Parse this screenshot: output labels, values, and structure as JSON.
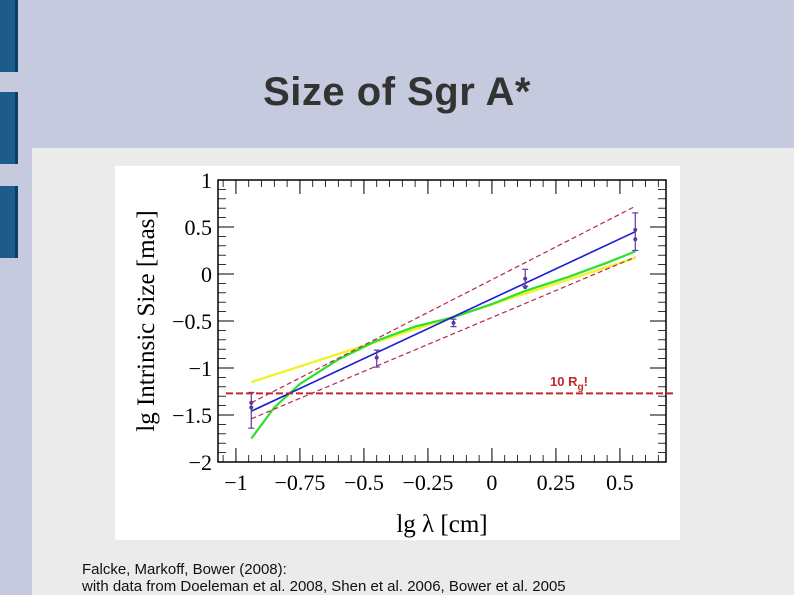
{
  "slide": {
    "title": "Size of Sgr A*",
    "citation_line1": "Falcke, Markoff, Bower (2008):",
    "citation_line2": "with data from Doeleman et al. 2008, Shen et al. 2006, Bower et al. 2005"
  },
  "colors": {
    "background": "#c6cadf",
    "panel": "#ebebeb",
    "accent_bar": "#1d5b8c",
    "blue_fit": "#1a1ad6",
    "green_model": "#2ee02e",
    "yellow_model": "#f2f22a",
    "dashed_envelope": "#b22a4a",
    "reference_line": "#c0282a",
    "data_points": "#5a3aa0"
  },
  "chart_data": {
    "type": "line",
    "xlabel": "lg λ [cm]",
    "ylabel": "lg Intrinsic  Size [mas]",
    "xlim": [
      -1.07,
      0.68
    ],
    "ylim": [
      -2,
      1
    ],
    "xticks": [
      -1,
      -0.75,
      -0.5,
      -0.25,
      0,
      0.25,
      0.5
    ],
    "xtick_labels": [
      "−1",
      "−0.75",
      "−0.5",
      "−0.25",
      "0",
      "0.25",
      "0.5"
    ],
    "yticks": [
      -2,
      -1.5,
      -1,
      -0.5,
      0,
      0.5,
      1
    ],
    "ytick_labels": [
      "−2",
      "−1.5",
      "−1",
      "−0.5",
      "0",
      "0.5",
      "1"
    ],
    "points": [
      {
        "x": -0.94,
        "y": -1.42,
        "yerr_low": 0.22,
        "yerr_high": 0.16
      },
      {
        "x": -0.94,
        "y": -1.37,
        "yerr_low": 0.0,
        "yerr_high": 0.0
      },
      {
        "x": -0.45,
        "y": -0.89,
        "yerr_low": 0.1,
        "yerr_high": 0.08
      },
      {
        "x": -0.15,
        "y": -0.52,
        "yerr_low": 0.04,
        "yerr_high": 0.04
      },
      {
        "x": 0.13,
        "y": -0.05,
        "yerr_low": 0.08,
        "yerr_high": 0.1
      },
      {
        "x": 0.13,
        "y": -0.14,
        "yerr_low": 0.0,
        "yerr_high": 0.0
      },
      {
        "x": 0.56,
        "y": 0.47,
        "yerr_low": 0.22,
        "yerr_high": 0.18
      },
      {
        "x": 0.56,
        "y": 0.37,
        "yerr_low": 0.0,
        "yerr_high": 0.0
      }
    ],
    "lines": [
      {
        "style": "solid-blue",
        "x": [
          -0.94,
          0.56
        ],
        "y": [
          -1.46,
          0.45
        ]
      },
      {
        "style": "solid-yellow",
        "x": [
          -0.94,
          0.56
        ],
        "y": [
          -1.15,
          0.17
        ]
      },
      {
        "style": "solid-green",
        "x": [
          -0.94,
          -0.85,
          -0.75,
          -0.6,
          -0.45,
          -0.3,
          -0.15,
          0.0,
          0.13,
          0.3,
          0.45,
          0.56
        ],
        "y": [
          -1.75,
          -1.42,
          -1.17,
          -0.91,
          -0.71,
          -0.56,
          -0.46,
          -0.32,
          -0.18,
          -0.03,
          0.12,
          0.24
        ]
      },
      {
        "style": "dashed-upper",
        "x": [
          -0.94,
          0.56
        ],
        "y": [
          -1.37,
          0.72
        ]
      },
      {
        "style": "dashed-lower",
        "x": [
          -0.94,
          0.56
        ],
        "y": [
          -1.54,
          0.18
        ]
      }
    ],
    "reference": {
      "y": -1.27,
      "label": "10 R",
      "label_sub": "g",
      "label_suffix": "!"
    }
  }
}
